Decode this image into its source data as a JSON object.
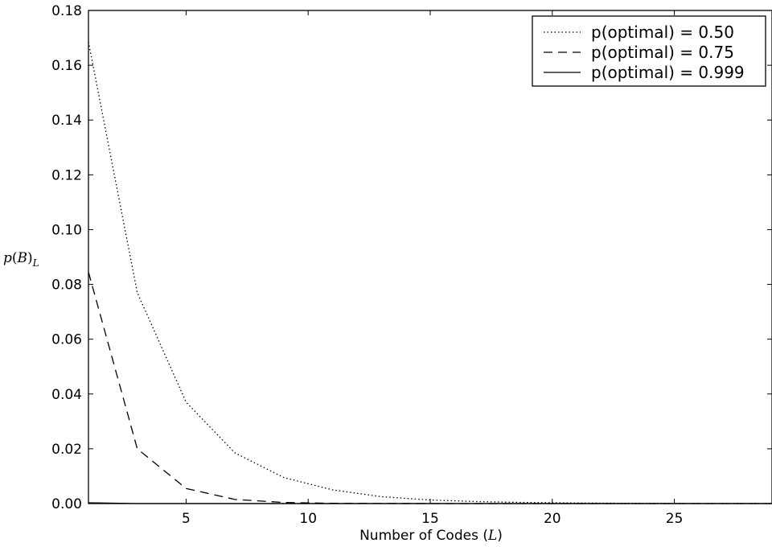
{
  "chart_data": {
    "type": "line",
    "title": "",
    "xlabel": "Number of Codes (L)",
    "ylabel": "p(B)_L",
    "xlim": [
      1,
      29
    ],
    "ylim": [
      0,
      0.18
    ],
    "x_ticks": [
      5,
      10,
      15,
      20,
      25
    ],
    "y_ticks": [
      0.0,
      0.02,
      0.04,
      0.06,
      0.08,
      0.1,
      0.12,
      0.14,
      0.16,
      0.18
    ],
    "y_tick_labels": [
      "0.00",
      "0.02",
      "0.04",
      "0.06",
      "0.08",
      "0.10",
      "0.12",
      "0.14",
      "0.16",
      "0.18"
    ],
    "x_tick_labels": [
      "5",
      "10",
      "15",
      "20",
      "25"
    ],
    "grid": false,
    "legend_position": "top-right",
    "x": [
      1,
      3,
      5,
      7,
      9,
      11,
      13,
      15,
      17,
      19,
      21,
      23,
      25,
      27,
      29
    ],
    "series": [
      {
        "name": "p(optimal) = 0.50",
        "style": "dotted",
        "values": [
          0.1685,
          0.077,
          0.037,
          0.0185,
          0.0095,
          0.005,
          0.0025,
          0.0013,
          0.0007,
          0.0004,
          0.0002,
          0.0001,
          5e-05,
          3e-05,
          1e-05
        ]
      },
      {
        "name": "p(optimal) = 0.75",
        "style": "dashed",
        "values": [
          0.0845,
          0.02,
          0.0055,
          0.0015,
          0.0004,
          0.0001,
          3e-05,
          1e-05,
          0.0,
          0.0,
          0.0,
          0.0,
          0.0,
          0.0,
          0.0
        ]
      },
      {
        "name": "p(optimal) = 0.999",
        "style": "solid",
        "values": [
          0.0003,
          0.0,
          0.0,
          0.0,
          0.0,
          0.0,
          0.0,
          0.0,
          0.0,
          0.0,
          0.0,
          0.0,
          0.0,
          0.0,
          0.0
        ]
      }
    ]
  },
  "text": {
    "xlabel_main": "Number of Codes (",
    "xlabel_var": "L",
    "xlabel_close": ")",
    "ylabel_p": "p",
    "ylabel_paren_open": "(",
    "ylabel_B": "B",
    "ylabel_paren_close": ")",
    "ylabel_sub": "L"
  }
}
